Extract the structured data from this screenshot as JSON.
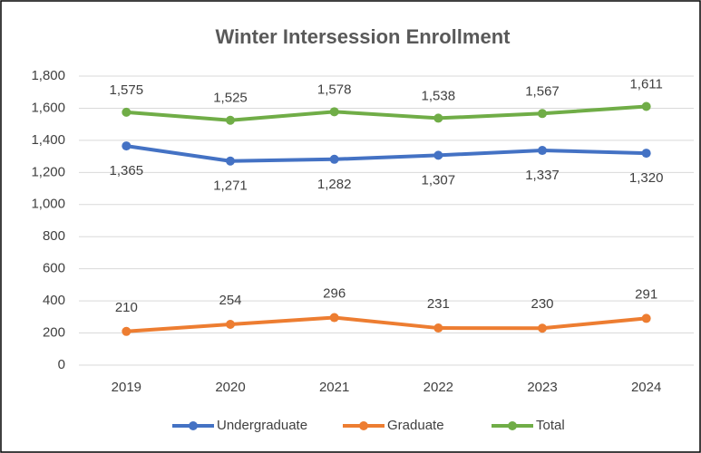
{
  "chart_data": {
    "type": "line",
    "title": "Winter Intersession Enrollment",
    "categories": [
      "2019",
      "2020",
      "2021",
      "2022",
      "2023",
      "2024"
    ],
    "series": [
      {
        "name": "Undergraduate",
        "color": "#4472c4",
        "values": [
          1365,
          1271,
          1282,
          1307,
          1337,
          1320
        ],
        "value_labels": [
          "1,365",
          "1,271",
          "1,282",
          "1,307",
          "1,337",
          "1,320"
        ]
      },
      {
        "name": "Graduate",
        "color": "#ed7d31",
        "values": [
          210,
          254,
          296,
          231,
          230,
          291
        ]
      },
      {
        "name": "Total",
        "color": "#70ad47",
        "values": [
          1575,
          1525,
          1578,
          1538,
          1567,
          1611
        ],
        "value_labels": [
          "1,575",
          "1,525",
          "1,578",
          "1,538",
          "1,567",
          "1,611"
        ]
      }
    ],
    "ylim": [
      0,
      1800
    ],
    "yticks": [
      0,
      200,
      400,
      600,
      800,
      {
        "value": 1000,
        "label": "1,000"
      },
      {
        "value": 1200,
        "label": "1,200"
      },
      {
        "value": 1400,
        "label": "1,400"
      },
      {
        "value": 1600,
        "label": "1,600"
      },
      {
        "value": 1800,
        "label": "1,800"
      }
    ],
    "grid": true,
    "legend": "bottom"
  }
}
